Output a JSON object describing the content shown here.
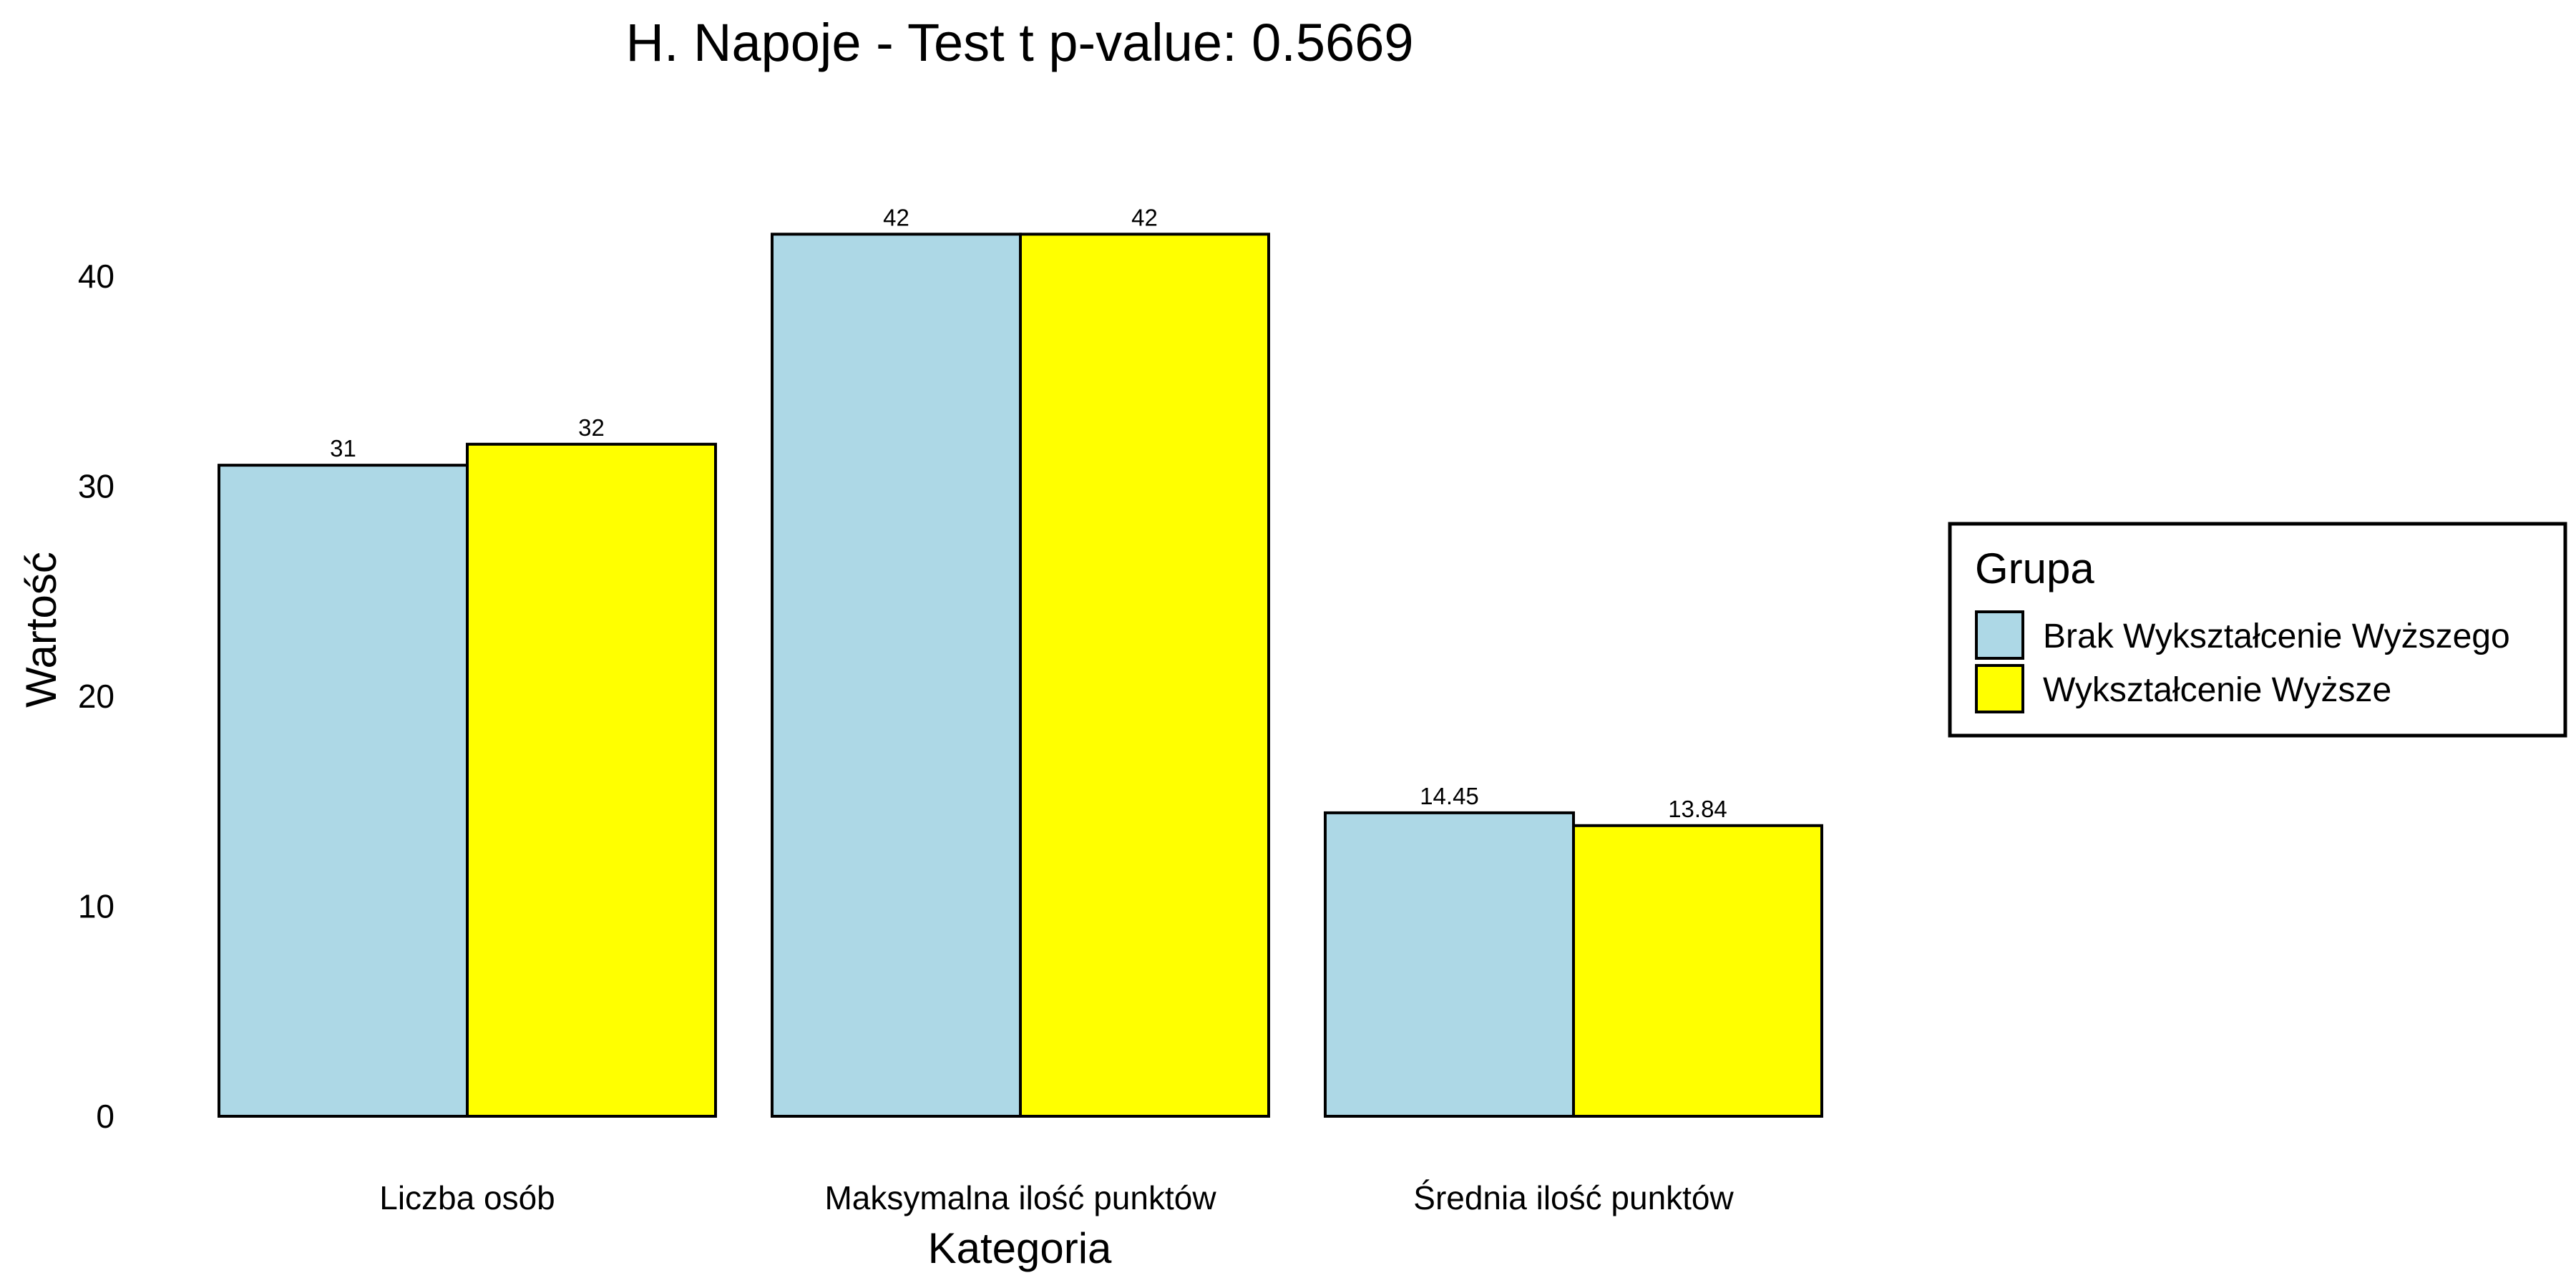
{
  "chart_data": {
    "type": "bar",
    "title": "H. Napoje - Test t p-value: 0.5669",
    "xlabel": "Kategoria",
    "ylabel": "Wartość",
    "categories": [
      "Liczba osób",
      "Maksymalna ilość punktów",
      "Średnia ilość punktów"
    ],
    "series": [
      {
        "name": "Brak Wykształcenie Wyższego",
        "color": "#ADD8E6",
        "values": [
          31,
          42,
          14.45
        ],
        "labels": [
          "31",
          "42",
          "14.45"
        ]
      },
      {
        "name": "Wykształcenie Wyższe",
        "color": "#FFFF00",
        "values": [
          32,
          42,
          13.84
        ],
        "labels": [
          "32",
          "42",
          "13.84"
        ]
      }
    ],
    "yticks": [
      0,
      10,
      20,
      30,
      40
    ],
    "ytick_labels": [
      "0",
      "10",
      "20",
      "30",
      "40"
    ],
    "ylim": [
      0,
      43
    ],
    "grid": false,
    "legend": {
      "title": "Grupa",
      "position": "right"
    }
  }
}
